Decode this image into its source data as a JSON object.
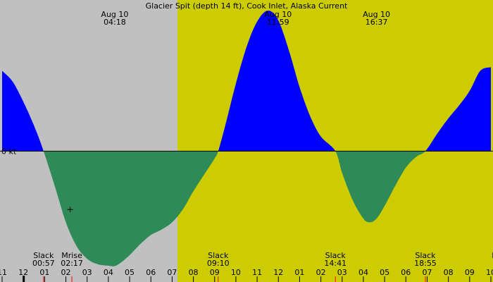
{
  "chart_data": {
    "type": "area",
    "title": "Glacier Spit (depth 14 ft), Cook Inlet, Alaska Current",
    "zero_label": "0 kt",
    "colors": {
      "night": "#c0c0c0",
      "day": "#cccc00",
      "flood": "#0000ff",
      "ebb": "#2e8b57",
      "tick": "#000000",
      "event_tick": "#ff0000"
    },
    "x_range_hours": [
      -2.0,
      21.0
    ],
    "y_range_kt": [
      -3.2,
      3.6
    ],
    "day_start_hour": 6.25,
    "hour_ticks": [
      {
        "hour": -2,
        "label": "11"
      },
      {
        "hour": -1,
        "label": "12"
      },
      {
        "hour": 0,
        "label": "01"
      },
      {
        "hour": 1,
        "label": "02"
      },
      {
        "hour": 2,
        "label": "03"
      },
      {
        "hour": 3,
        "label": "04"
      },
      {
        "hour": 4,
        "label": "05"
      },
      {
        "hour": 5,
        "label": "06"
      },
      {
        "hour": 6,
        "label": "07"
      },
      {
        "hour": 7,
        "label": "08"
      },
      {
        "hour": 8,
        "label": "09"
      },
      {
        "hour": 9,
        "label": "10"
      },
      {
        "hour": 10,
        "label": "11"
      },
      {
        "hour": 11,
        "label": "12"
      },
      {
        "hour": 12,
        "label": "01"
      },
      {
        "hour": 13,
        "label": "02"
      },
      {
        "hour": 14,
        "label": "03"
      },
      {
        "hour": 15,
        "label": "04"
      },
      {
        "hour": 16,
        "label": "05"
      },
      {
        "hour": 17,
        "label": "06"
      },
      {
        "hour": 18,
        "label": "07"
      },
      {
        "hour": 19,
        "label": "08"
      },
      {
        "hour": 20,
        "label": "09"
      },
      {
        "hour": 21,
        "label": "10"
      }
    ],
    "top_events": [
      {
        "hour": 3.3,
        "date": "Aug 10",
        "time": "04:18"
      },
      {
        "hour": 10.983,
        "date": "Aug 10",
        "time": "11:59"
      },
      {
        "hour": 15.617,
        "date": "Aug 10",
        "time": "16:37"
      }
    ],
    "bottom_events": [
      {
        "hour": -0.05,
        "label": "Slack",
        "time": "00:57"
      },
      {
        "hour": 1.283,
        "label": "Mrise",
        "time": "02:17"
      },
      {
        "hour": 8.167,
        "label": "Slack",
        "time": "09:10"
      },
      {
        "hour": 13.683,
        "label": "Slack",
        "time": "14:41"
      },
      {
        "hour": 17.917,
        "label": "Slack",
        "time": "18:55"
      },
      {
        "hour": 21.2,
        "label": "M",
        "time": "2"
      }
    ],
    "current_kt": {
      "x": [
        -2.0,
        -1.5,
        -1.0,
        -0.5,
        -0.05,
        0.5,
        1.0,
        1.5,
        2.0,
        2.5,
        3.0,
        3.3,
        3.6,
        4.0,
        4.5,
        5.0,
        5.5,
        6.0,
        6.5,
        7.0,
        7.5,
        8.0,
        8.167,
        8.5,
        9.0,
        9.5,
        10.0,
        10.5,
        10.983,
        11.5,
        12.0,
        12.5,
        13.0,
        13.683,
        14.0,
        14.5,
        15.0,
        15.3,
        15.617,
        16.0,
        16.5,
        17.0,
        17.5,
        17.917,
        18.5,
        19.0,
        19.5,
        20.0,
        20.5,
        21.0
      ],
      "y": [
        2.2,
        1.9,
        1.35,
        0.7,
        0.0,
        -1.0,
        -1.95,
        -2.6,
        -2.95,
        -3.1,
        -3.14,
        -3.15,
        -3.05,
        -2.85,
        -2.55,
        -2.3,
        -2.15,
        -1.95,
        -1.6,
        -1.1,
        -0.65,
        -0.2,
        0.0,
        0.7,
        1.85,
        2.85,
        3.55,
        3.85,
        3.6,
        2.75,
        1.75,
        0.95,
        0.4,
        0.0,
        -0.6,
        -1.35,
        -1.85,
        -1.95,
        -1.85,
        -1.5,
        -0.95,
        -0.45,
        -0.15,
        0.0,
        0.5,
        0.9,
        1.25,
        1.65,
        2.2,
        2.3
      ]
    }
  }
}
